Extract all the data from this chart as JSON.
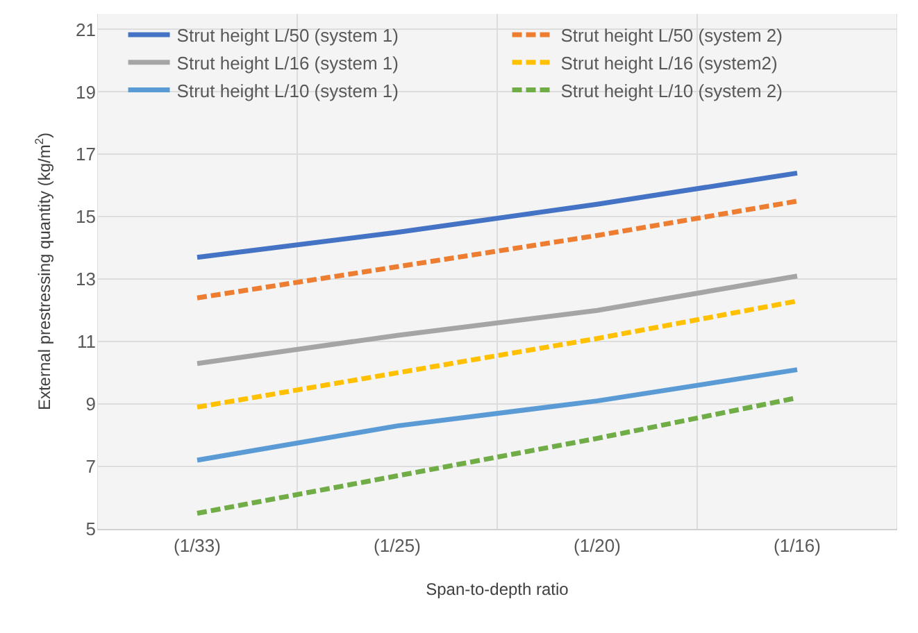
{
  "chart_data": {
    "type": "line",
    "xlabel": "Span-to-depth ratio",
    "ylabel": "External prestressing quantity (kg/m$^{2}$)",
    "categories": [
      "(1/33)",
      "(1/25)",
      "(1/20)",
      "(1/16)"
    ],
    "series": [
      {
        "name": "Strut height L/50 (system 1)",
        "color": "#4472c4",
        "line_style": "solid",
        "values": [
          13.7,
          14.5,
          15.4,
          16.4
        ]
      },
      {
        "name": "Strut height L/50 (system 2)",
        "color": "#ed7d31",
        "line_style": "dashed",
        "values": [
          12.4,
          13.4,
          14.4,
          15.5
        ]
      },
      {
        "name": "Strut height L/16 (system 1)",
        "color": "#a5a5a5",
        "line_style": "solid",
        "values": [
          10.3,
          11.2,
          12.0,
          13.1
        ]
      },
      {
        "name": "Strut height L/16 (system2)",
        "color": "#ffc000",
        "line_style": "dashed",
        "values": [
          8.9,
          10.0,
          11.1,
          12.3
        ]
      },
      {
        "name": "Strut height L/10 (system 1)",
        "color": "#5b9bd5",
        "line_style": "solid",
        "values": [
          7.2,
          8.3,
          9.1,
          10.1
        ]
      },
      {
        "name": "Strut height L/10 (system 2)",
        "color": "#70ad47",
        "line_style": "dashed",
        "values": [
          5.5,
          6.7,
          7.9,
          9.2
        ]
      }
    ],
    "ylim": [
      5,
      21.5
    ],
    "yticks": [
      5,
      7,
      9,
      11,
      13,
      15,
      17,
      19,
      21
    ],
    "grid": true,
    "legend": "top",
    "marker": "none"
  }
}
